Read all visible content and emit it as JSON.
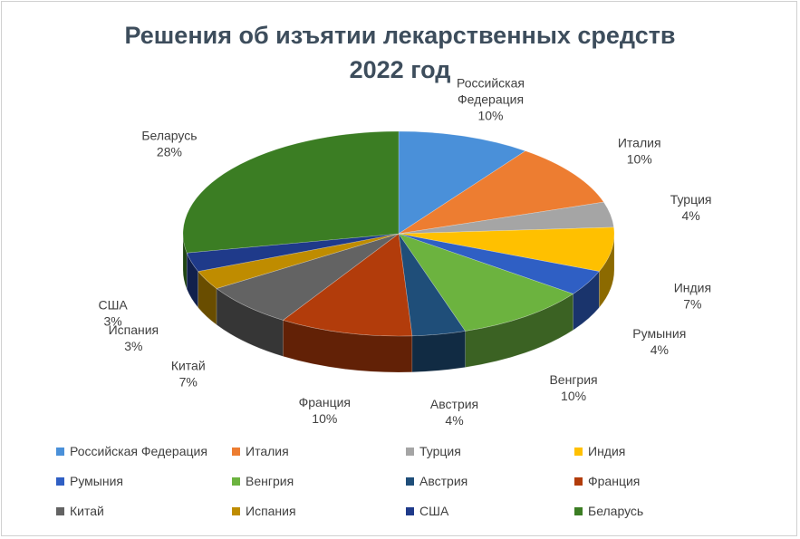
{
  "chart_data": {
    "type": "pie",
    "title_line1": "Решения об изъятии лекарственных средств",
    "title_line2": "2022 год",
    "labels_shown": "category and percent",
    "legend_position": "bottom",
    "slices": [
      {
        "name": "Российская Федерация",
        "value": 10,
        "label": "10%",
        "color": "#4a90d9"
      },
      {
        "name": "Италия",
        "value": 10,
        "label": "10%",
        "color": "#ed7d31"
      },
      {
        "name": "Турция",
        "value": 4,
        "label": "4%",
        "color": "#a5a5a5"
      },
      {
        "name": "Индия",
        "value": 7,
        "label": "7%",
        "color": "#ffc000"
      },
      {
        "name": "Румыния",
        "value": 4,
        "label": "4%",
        "color": "#2f5fc4"
      },
      {
        "name": "Венгрия",
        "value": 10,
        "label": "10%",
        "color": "#6cb33f"
      },
      {
        "name": "Австрия",
        "value": 4,
        "label": "4%",
        "color": "#1f4e79"
      },
      {
        "name": "Франция",
        "value": 10,
        "label": "10%",
        "color": "#b23c0b"
      },
      {
        "name": "Китай",
        "value": 7,
        "label": "7%",
        "color": "#636363"
      },
      {
        "name": "Испания",
        "value": 3,
        "label": "3%",
        "color": "#bf8c00"
      },
      {
        "name": "США",
        "value": 3,
        "label": "3%",
        "color": "#1f3a8a"
      },
      {
        "name": "Беларусь",
        "value": 28,
        "label": "28%",
        "color": "#3b7d23"
      }
    ]
  }
}
